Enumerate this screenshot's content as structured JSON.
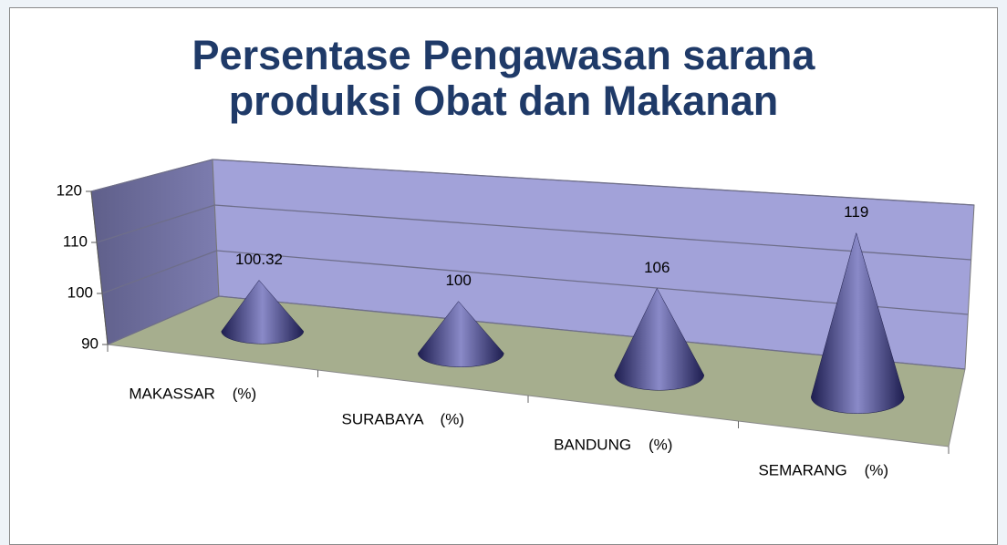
{
  "chart_data": {
    "type": "cone3d",
    "title": "Persentase Pengawasan sarana produksi Obat dan Makanan",
    "categories": [
      "MAKASSAR    (%)",
      "SURABAYA    (%)",
      "BANDUNG    (%)",
      "SEMARANG    (%)"
    ],
    "values": [
      100.32,
      100,
      106,
      119
    ],
    "color": "#2e2e70",
    "ylim": [
      90,
      120
    ],
    "yticks": [
      90,
      100,
      110,
      120
    ],
    "grid": true
  }
}
